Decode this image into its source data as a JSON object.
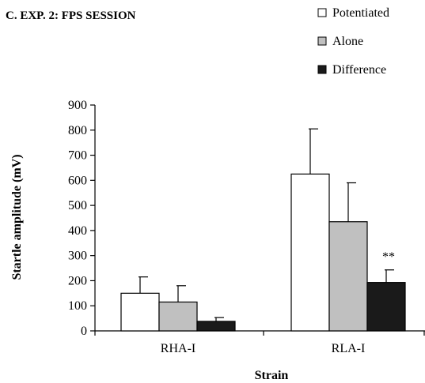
{
  "chart_data": {
    "type": "bar",
    "title": "C. EXP. 2: FPS SESSION",
    "xlabel": "Strain",
    "ylabel": "Startle amplitude (mV)",
    "categories": [
      "RHA-I",
      "RLA-I"
    ],
    "ylim": [
      0,
      900
    ],
    "yticks": [
      0,
      100,
      200,
      300,
      400,
      500,
      600,
      700,
      800,
      900
    ],
    "grid": false,
    "legend": "top-right",
    "series": [
      {
        "name": "Potentiated",
        "color": "#ffffff",
        "values": [
          150,
          625
        ],
        "errors": [
          65,
          180
        ]
      },
      {
        "name": "Alone",
        "color": "#c0c0c0",
        "values": [
          115,
          435
        ],
        "errors": [
          65,
          155
        ]
      },
      {
        "name": "Difference",
        "color": "#1a1a1a",
        "values": [
          38,
          193
        ],
        "errors": [
          15,
          50
        ]
      }
    ],
    "annotations": [
      {
        "text": "**",
        "category": "RLA-I",
        "series": "Difference"
      }
    ]
  }
}
